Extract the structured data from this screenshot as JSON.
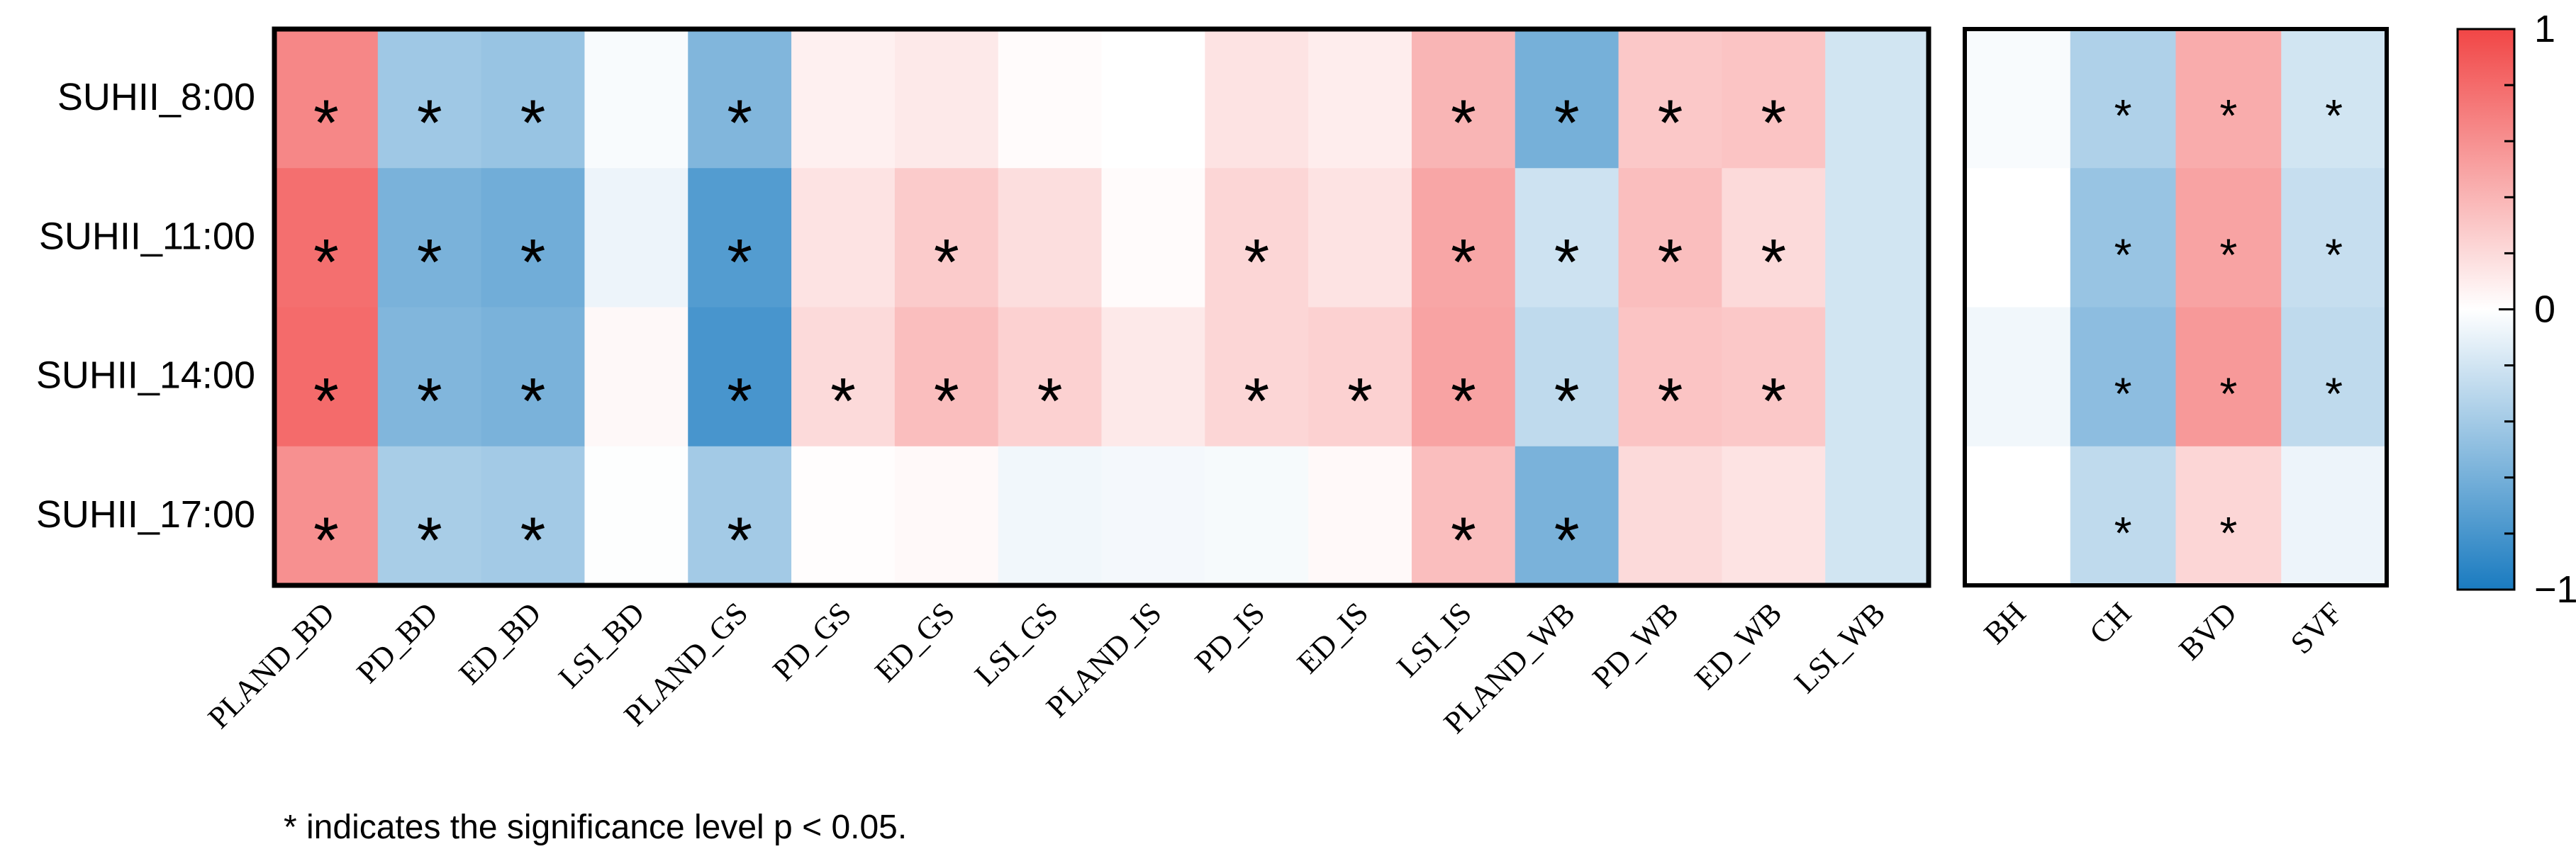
{
  "chart_data": [
    {
      "type": "heatmap",
      "rows": [
        "SUHII_8:00",
        "SUHII_11:00",
        "SUHII_14:00",
        "SUHII_17:00"
      ],
      "columns": [
        "PLAND_BD",
        "PD_BD",
        "ED_BD",
        "LSI_BD",
        "PLAND_GS",
        "PD_GS",
        "ED_GS",
        "LSI_GS",
        "PLAND_IS",
        "PD_IS",
        "ED_IS",
        "LSI_IS",
        "PLAND_WB",
        "PD_WB",
        "ED_WB",
        "LSI_WB"
      ],
      "values": [
        [
          0.65,
          -0.42,
          -0.45,
          -0.03,
          -0.55,
          0.08,
          0.12,
          0.02,
          0.0,
          0.15,
          0.1,
          0.4,
          -0.6,
          0.3,
          0.32,
          -0.2
        ],
        [
          0.78,
          -0.58,
          -0.62,
          -0.08,
          -0.75,
          0.15,
          0.28,
          0.18,
          0.02,
          0.22,
          0.15,
          0.48,
          -0.22,
          0.35,
          0.2,
          -0.2
        ],
        [
          0.8,
          -0.55,
          -0.58,
          0.04,
          -0.8,
          0.2,
          0.35,
          0.25,
          0.12,
          0.22,
          0.25,
          0.5,
          -0.28,
          0.32,
          0.3,
          -0.2
        ],
        [
          0.6,
          -0.38,
          -0.4,
          -0.01,
          -0.4,
          0.01,
          0.03,
          -0.06,
          -0.05,
          -0.04,
          0.03,
          0.35,
          -0.58,
          0.2,
          0.15,
          -0.2
        ]
      ],
      "significant": [
        [
          true,
          true,
          true,
          false,
          true,
          false,
          false,
          false,
          false,
          false,
          false,
          true,
          true,
          true,
          true,
          false
        ],
        [
          true,
          true,
          true,
          false,
          true,
          false,
          true,
          false,
          false,
          true,
          false,
          true,
          true,
          true,
          true,
          false
        ],
        [
          true,
          true,
          true,
          false,
          true,
          true,
          true,
          true,
          false,
          true,
          true,
          true,
          true,
          true,
          true,
          false
        ],
        [
          true,
          true,
          true,
          false,
          true,
          false,
          false,
          false,
          false,
          false,
          false,
          true,
          true,
          false,
          false,
          false
        ]
      ],
      "significance_marker": "*"
    },
    {
      "type": "heatmap",
      "rows": [
        "SUHII_8:00",
        "SUHII_11:00",
        "SUHII_14:00",
        "SUHII_17:00"
      ],
      "columns": [
        "BH",
        "CH",
        "BVD",
        "SVF"
      ],
      "values": [
        [
          -0.03,
          -0.35,
          0.45,
          -0.2
        ],
        [
          0.0,
          -0.45,
          0.5,
          -0.25
        ],
        [
          -0.06,
          -0.5,
          0.55,
          -0.28
        ],
        [
          0.0,
          -0.28,
          0.22,
          -0.08
        ]
      ],
      "significant": [
        [
          false,
          true,
          true,
          true
        ],
        [
          false,
          true,
          true,
          true
        ],
        [
          false,
          true,
          true,
          true
        ],
        [
          false,
          true,
          true,
          false
        ]
      ],
      "significance_marker": "*"
    }
  ],
  "colorbar": {
    "min": -1,
    "max": 1,
    "tick_labels": [
      "1",
      "0",
      "−1"
    ],
    "tick_values": [
      1,
      0,
      -1
    ],
    "minor_tick_values": [
      0.8,
      0.6,
      0.4,
      0.2,
      -0.2,
      -0.4,
      -0.6,
      -0.8
    ],
    "color_low": "#1a7bc0",
    "color_mid": "#ffffff",
    "color_high": "#f14646"
  },
  "footnote": "* indicates the significance level p < 0.05."
}
